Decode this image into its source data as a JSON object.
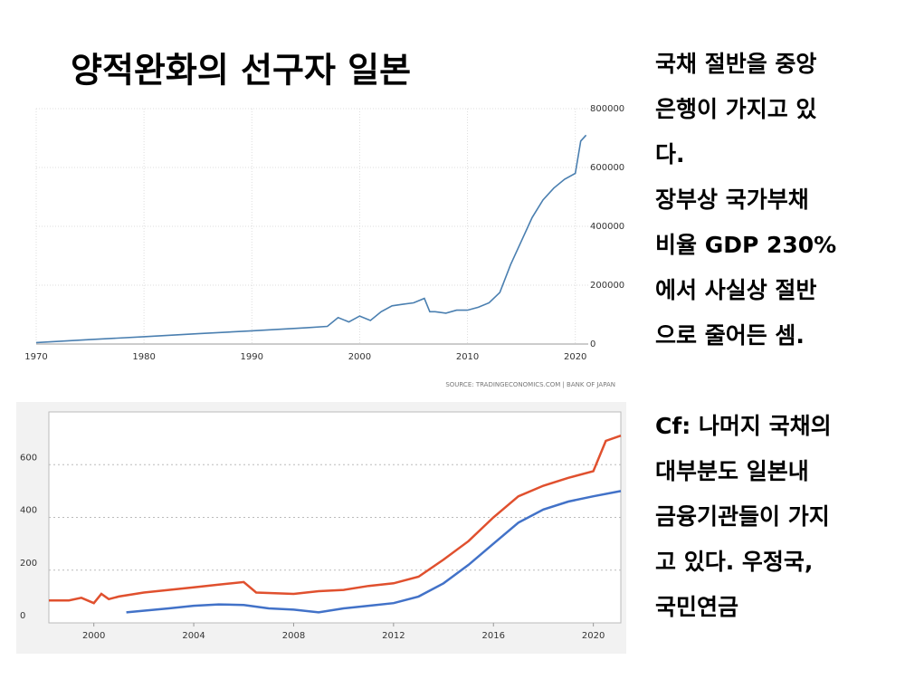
{
  "title": "양적완화의 선구자 일본",
  "text_block_1": [
    "국채 절반을 중앙",
    "은행이 가지고 있",
    "다.",
    "장부상 국가부채",
    "비율 GDP 230%",
    "에서 사실상 절반",
    "으로 줄어든 셈."
  ],
  "text_block_2": [
    "Cf: 나머지 국채의",
    "대부분도 일본내",
    "금융기관들이 가지",
    "고 있다. 우정국,",
    "국민연금"
  ],
  "chart_data": [
    {
      "type": "line",
      "source": "SOURCE: TRADINGECONOMICS.COM  |  BANK OF JAPAN",
      "xlim": [
        1970,
        2021.2
      ],
      "xticks": [
        1970,
        1980,
        1990,
        2000,
        2010,
        2020
      ],
      "ylim": [
        0,
        800000
      ],
      "yticks": [
        0,
        200000,
        400000,
        600000,
        800000
      ],
      "grid": true,
      "series": [
        {
          "color": "#4a7fb0",
          "x": [
            1970,
            1975,
            1980,
            1985,
            1990,
            1995,
            1997,
            1998,
            1999,
            2000,
            2001,
            2002,
            2003,
            2004,
            2005,
            2006,
            2006.5,
            2007,
            2008,
            2009,
            2010,
            2011,
            2012,
            2013,
            2014,
            2015,
            2016,
            2017,
            2018,
            2019,
            2020,
            2020.5,
            2021
          ],
          "values": [
            5000,
            15000,
            25000,
            35000,
            45000,
            55000,
            60000,
            90000,
            75000,
            95000,
            80000,
            110000,
            130000,
            135000,
            140000,
            155000,
            110000,
            110000,
            105000,
            115000,
            115000,
            125000,
            140000,
            175000,
            270000,
            350000,
            430000,
            490000,
            530000,
            560000,
            580000,
            690000,
            710000
          ]
        }
      ]
    },
    {
      "type": "line",
      "xlim": [
        1998.2,
        2021.1
      ],
      "xticks": [
        2000,
        2004,
        2008,
        2012,
        2016,
        2020
      ],
      "ylim": [
        0,
        800
      ],
      "yticks": [
        0,
        200,
        400,
        600
      ],
      "grid": true,
      "series": [
        {
          "color": "#e0502e",
          "x": [
            1998.2,
            1999,
            1999.5,
            2000,
            2000.3,
            2000.6,
            2001,
            2002,
            2003,
            2004,
            2005,
            2006,
            2006.5,
            2008,
            2009,
            2010,
            2011,
            2012,
            2013,
            2014,
            2015,
            2016,
            2017,
            2018,
            2019,
            2020,
            2020.5,
            2021.1
          ],
          "values": [
            85,
            85,
            95,
            75,
            110,
            90,
            100,
            115,
            125,
            135,
            145,
            155,
            115,
            110,
            120,
            125,
            140,
            150,
            175,
            240,
            310,
            400,
            480,
            520,
            550,
            575,
            690,
            710
          ]
        },
        {
          "color": "#4272c8",
          "x": [
            2001.3,
            2003,
            2004,
            2005,
            2006,
            2007,
            2008,
            2009,
            2010,
            2011,
            2012,
            2013,
            2014,
            2015,
            2016,
            2017,
            2018,
            2019,
            2020,
            2021.1
          ],
          "values": [
            40,
            55,
            65,
            70,
            68,
            55,
            50,
            40,
            55,
            65,
            75,
            100,
            150,
            220,
            300,
            380,
            430,
            460,
            480,
            500
          ]
        }
      ]
    }
  ]
}
